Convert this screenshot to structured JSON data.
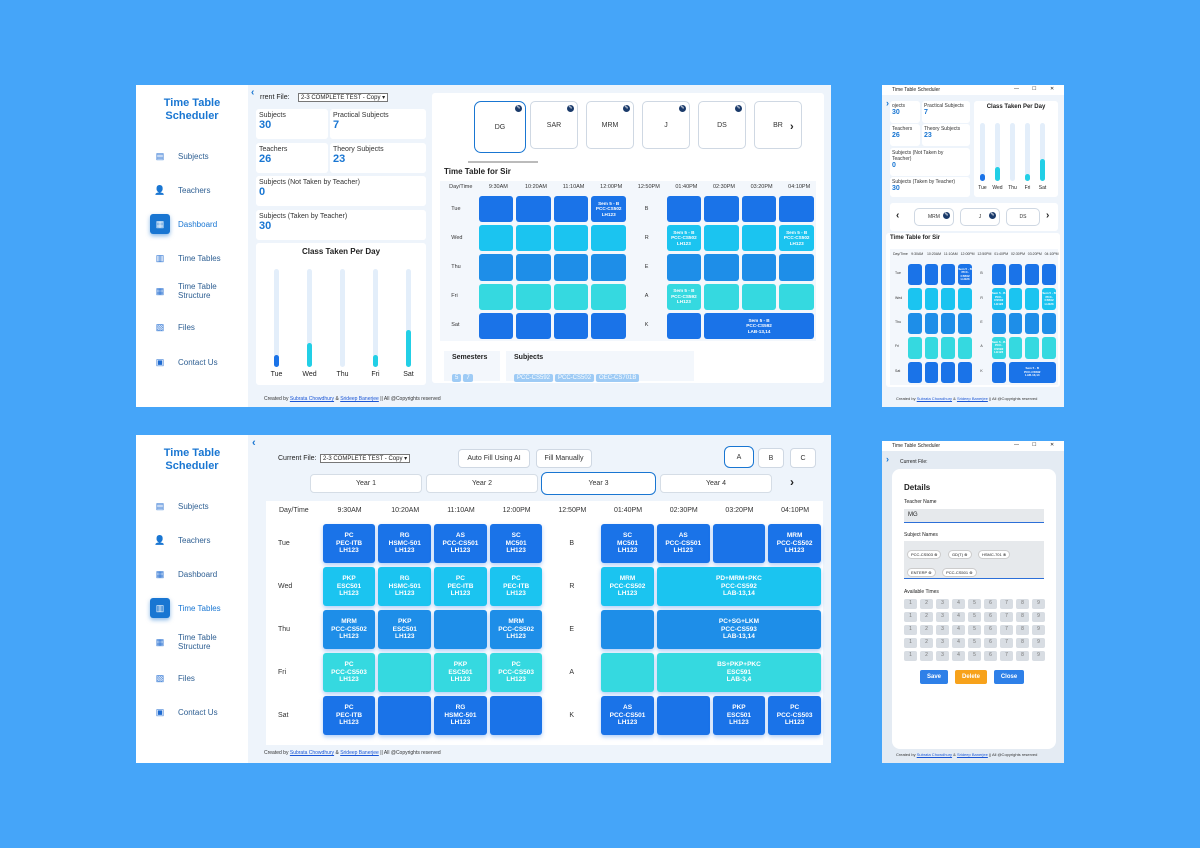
{
  "app": {
    "title_line1": "Time Table",
    "title_line2": "Scheduler",
    "window_title": "Time Table Scheduler"
  },
  "nav": [
    "Subjects",
    "Teachers",
    "Dashboard",
    "Time Tables",
    "Time Table",
    "Structure",
    "Files",
    "Contact Us"
  ],
  "file": {
    "label": "Current File:",
    "value": "2-3 COMPLETE TEST - Copy",
    "label_cut": "rrent File:"
  },
  "stats": {
    "subjects_label": "Subjects",
    "subjects": "30",
    "practical_label": "Practical Subjects",
    "practical": "7",
    "teachers_label": "Teachers",
    "teachers": "26",
    "theory_label": "Theory Subjects",
    "theory": "23",
    "not_taken_label": "Subjects (Not Taken by Teacher)",
    "not_taken": "0",
    "taken_label": "Subjects (Taken by Teacher)",
    "taken": "30",
    "not_taken_a": "Subjects (Not Taken by",
    "not_taken_b": "Teacher)",
    "taken_short": "Subjects (Taken by Teacher)",
    "subj_cut": "ojects"
  },
  "chart_data": {
    "type": "bar",
    "title": "Class Taken Per Day",
    "categories": [
      "Tue",
      "Wed",
      "Thu",
      "Fri",
      "Sat"
    ],
    "values": [
      0.12,
      0.24,
      0.0,
      0.12,
      0.38
    ]
  },
  "teachers": [
    "DG",
    "SAR",
    "MRM",
    "J",
    "DS",
    "BR"
  ],
  "tt_title": "Time Table for Sir",
  "times": [
    "Day/Time",
    "9:30AM",
    "10:20AM",
    "11:10AM",
    "12:00PM",
    "12:50PM",
    "01:40PM",
    "02:30PM",
    "03:20PM",
    "04:10PM"
  ],
  "days": [
    "Tue",
    "Wed",
    "Thu",
    "Fri",
    "Sat"
  ],
  "brk": [
    "B",
    "R",
    "E",
    "A",
    "K"
  ],
  "sir": {
    "tue": "Sem 5 - B\nPCC-CS502\nLH123",
    "wed1": "Sem 5 - B\nPCC-CS502\nLH123",
    "wed2": "Sem 5 - B\nPCC-CS502\nLH123",
    "fri": "Sem 5 - B\nPCC-CS592\nLH123",
    "sat": "Sem 5 - B\nPCC-CS592\nLAB-13,14"
  },
  "sem_label": "Semesters",
  "sems": [
    "5",
    "7"
  ],
  "subj_label": "Subjects",
  "subjs": [
    "PCC-CS592",
    "PCC-CS502",
    "OEC-CS701B"
  ],
  "footer": {
    "pre": "Created by ",
    "a1": "Subrata Chowdhury",
    "mid": " & ",
    "a2": "Srideep Banerjee",
    "post": " || All @Copyrights reserved"
  },
  "controls": {
    "auto": "Auto Fill Using AI",
    "manual": "Fill Manually",
    "sections": [
      "A",
      "B",
      "C"
    ],
    "years": [
      "Year 1",
      "Year 2",
      "Year 3",
      "Year 4"
    ]
  },
  "grid": {
    "tue": [
      "PC\nPEC-ITB\nLH123",
      "RG\nHSMC-501\nLH123",
      "AS\nPCC-CS501\nLH123",
      "SC\nMC501\nLH123",
      "SC\nMC501\nLH123",
      "AS\nPCC-CS501\nLH123",
      "",
      "MRM\nPCC-CS502\nLH123"
    ],
    "wed": [
      "PKP\nESC501\nLH123",
      "RG\nHSMC-501\nLH123",
      "PC\nPEC-ITB\nLH123",
      "PC\nPEC-ITB\nLH123",
      "MRM\nPCC-CS502\nLH123",
      "PD+MRM+PKC\nPCC-CS592\nLAB-13,14"
    ],
    "thu": [
      "MRM\nPCC-CS502\nLH123",
      "PKP\nESC501\nLH123",
      "",
      "MRM\nPCC-CS502\nLH123",
      "",
      "PC+SG+LKM\nPCC-CS593\nLAB-13,14"
    ],
    "fri": [
      "PC\nPCC-CS503\nLH123",
      "",
      "PKP\nESC501\nLH123",
      "PC\nPCC-CS503\nLH123",
      "",
      "BS+PKP+PKC\nESC591\nLAB-3,4"
    ],
    "sat": [
      "PC\nPEC-ITB\nLH123",
      "",
      "RG\nHSMC-501\nLH123",
      "",
      "AS\nPCC-CS501\nLH123",
      "",
      "PKP\nESC501\nLH123",
      "PC\nPCC-CS503\nLH123"
    ]
  },
  "details": {
    "title": "Details",
    "teacher_label": "Teacher Name",
    "teacher": "MG",
    "subjects_label": "Subject Names",
    "subjects": [
      "PCC-CS503",
      "GD(T)",
      "HSMC-701",
      "ENTERP",
      "PCC-CS501"
    ],
    "times_label": "Available Times",
    "save": "Save",
    "delete": "Delete",
    "close": "Close",
    "current_file": "Current File:"
  },
  "win_controls": [
    "—",
    "☐",
    "✕"
  ]
}
